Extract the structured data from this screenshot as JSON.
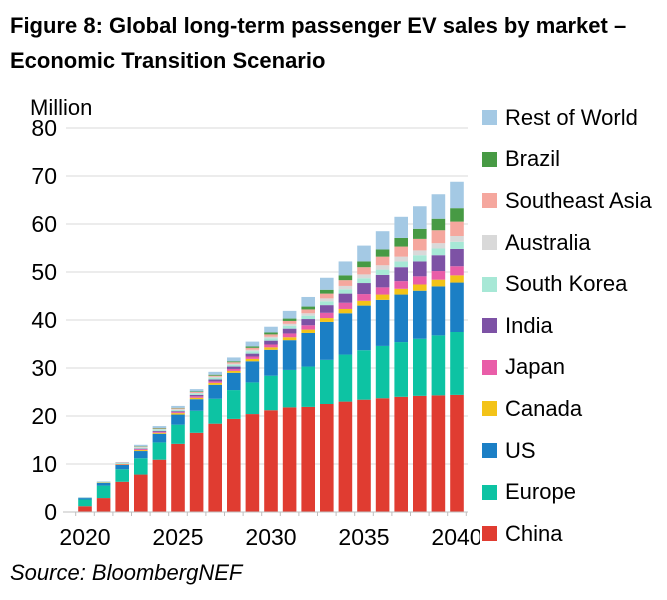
{
  "header": {
    "title_lines": {
      "line1": "Figure 8: Global long-term passenger EV sales by market –",
      "line2": "Economic Transition Scenario"
    }
  },
  "footer": {
    "source": "Source: BloombergNEF"
  },
  "chart_data": {
    "type": "bar",
    "stacked": true,
    "title": "Figure 8: Global long-term passenger EV sales by market – Economic Transition Scenario",
    "ylabel": "Million",
    "xlabel": "",
    "ylim": [
      0,
      80
    ],
    "ytick_step": 10,
    "grid": "horizontal",
    "grid_color": "#d9d9d9",
    "axis_color": "#bfbfbf",
    "legend_position": "right",
    "x": [
      2020,
      2021,
      2022,
      2023,
      2024,
      2025,
      2026,
      2027,
      2028,
      2029,
      2030,
      2031,
      2032,
      2033,
      2034,
      2035,
      2036,
      2037,
      2038,
      2039,
      2040
    ],
    "x_tick_years": [
      2020,
      2025,
      2030,
      2035,
      2040
    ],
    "series": [
      {
        "name": "China",
        "color": "#e03c31",
        "values": [
          1.2,
          2.9,
          6.3,
          7.8,
          10.9,
          14.2,
          16.5,
          18.4,
          19.4,
          20.4,
          21.2,
          21.8,
          21.9,
          22.5,
          23.0,
          23.4,
          23.7,
          24.0,
          24.2,
          24.3,
          24.4
        ]
      },
      {
        "name": "Europe",
        "color": "#0dc3a3",
        "values": [
          1.4,
          2.6,
          2.6,
          3.4,
          3.6,
          4.0,
          4.6,
          5.2,
          6.0,
          6.6,
          7.2,
          7.8,
          8.4,
          9.2,
          9.8,
          10.3,
          10.9,
          11.4,
          11.9,
          12.5,
          13.1
        ]
      },
      {
        "name": "US",
        "color": "#1b7fc5",
        "values": [
          0.3,
          0.6,
          0.9,
          1.5,
          1.8,
          2.1,
          2.4,
          2.9,
          3.6,
          4.4,
          5.4,
          6.2,
          7.0,
          7.9,
          8.6,
          9.3,
          9.6,
          9.9,
          10.0,
          10.2,
          10.3
        ]
      },
      {
        "name": "Canada",
        "color": "#f3c318",
        "values": [
          0.0,
          0.1,
          0.1,
          0.2,
          0.2,
          0.3,
          0.3,
          0.4,
          0.4,
          0.5,
          0.5,
          0.6,
          0.7,
          0.8,
          0.9,
          1.0,
          1.1,
          1.2,
          1.3,
          1.4,
          1.5
        ]
      },
      {
        "name": "Japan",
        "color": "#e95da8",
        "values": [
          0.0,
          0.0,
          0.1,
          0.2,
          0.2,
          0.2,
          0.3,
          0.3,
          0.4,
          0.5,
          0.6,
          0.8,
          0.9,
          1.1,
          1.3,
          1.4,
          1.5,
          1.6,
          1.7,
          1.8,
          1.9
        ]
      },
      {
        "name": "India",
        "color": "#7d52a5",
        "values": [
          0.0,
          0.0,
          0.0,
          0.1,
          0.2,
          0.2,
          0.3,
          0.4,
          0.5,
          0.6,
          0.8,
          1.0,
          1.3,
          1.6,
          1.9,
          2.3,
          2.6,
          2.9,
          3.1,
          3.3,
          3.6
        ]
      },
      {
        "name": "South Korea",
        "color": "#a7e8d6",
        "values": [
          0.1,
          0.1,
          0.2,
          0.2,
          0.3,
          0.3,
          0.3,
          0.4,
          0.4,
          0.5,
          0.5,
          0.6,
          0.7,
          0.8,
          0.9,
          1.0,
          1.1,
          1.2,
          1.3,
          1.4,
          1.5
        ]
      },
      {
        "name": "Australia",
        "color": "#d9d9d9",
        "values": [
          0.0,
          0.0,
          0.0,
          0.1,
          0.1,
          0.1,
          0.1,
          0.2,
          0.2,
          0.3,
          0.3,
          0.4,
          0.5,
          0.6,
          0.7,
          0.8,
          0.9,
          1.0,
          1.0,
          1.1,
          1.2
        ]
      },
      {
        "name": "Southeast Asia",
        "color": "#f5a79e",
        "values": [
          0.0,
          0.0,
          0.1,
          0.1,
          0.1,
          0.2,
          0.2,
          0.2,
          0.3,
          0.4,
          0.5,
          0.6,
          0.8,
          1.0,
          1.2,
          1.5,
          1.8,
          2.1,
          2.4,
          2.7,
          3.0
        ]
      },
      {
        "name": "Brazil",
        "color": "#479a44",
        "values": [
          0.0,
          0.0,
          0.0,
          0.1,
          0.1,
          0.1,
          0.1,
          0.2,
          0.2,
          0.3,
          0.4,
          0.5,
          0.6,
          0.8,
          1.0,
          1.2,
          1.5,
          1.8,
          2.1,
          2.4,
          2.8
        ]
      },
      {
        "name": "Rest of World",
        "color": "#a4c9e4",
        "values": [
          0.1,
          0.1,
          0.1,
          0.3,
          0.4,
          0.4,
          0.5,
          0.6,
          0.8,
          1.0,
          1.2,
          1.6,
          2.0,
          2.5,
          2.9,
          3.3,
          3.8,
          4.4,
          4.7,
          5.1,
          5.5
        ]
      }
    ]
  }
}
